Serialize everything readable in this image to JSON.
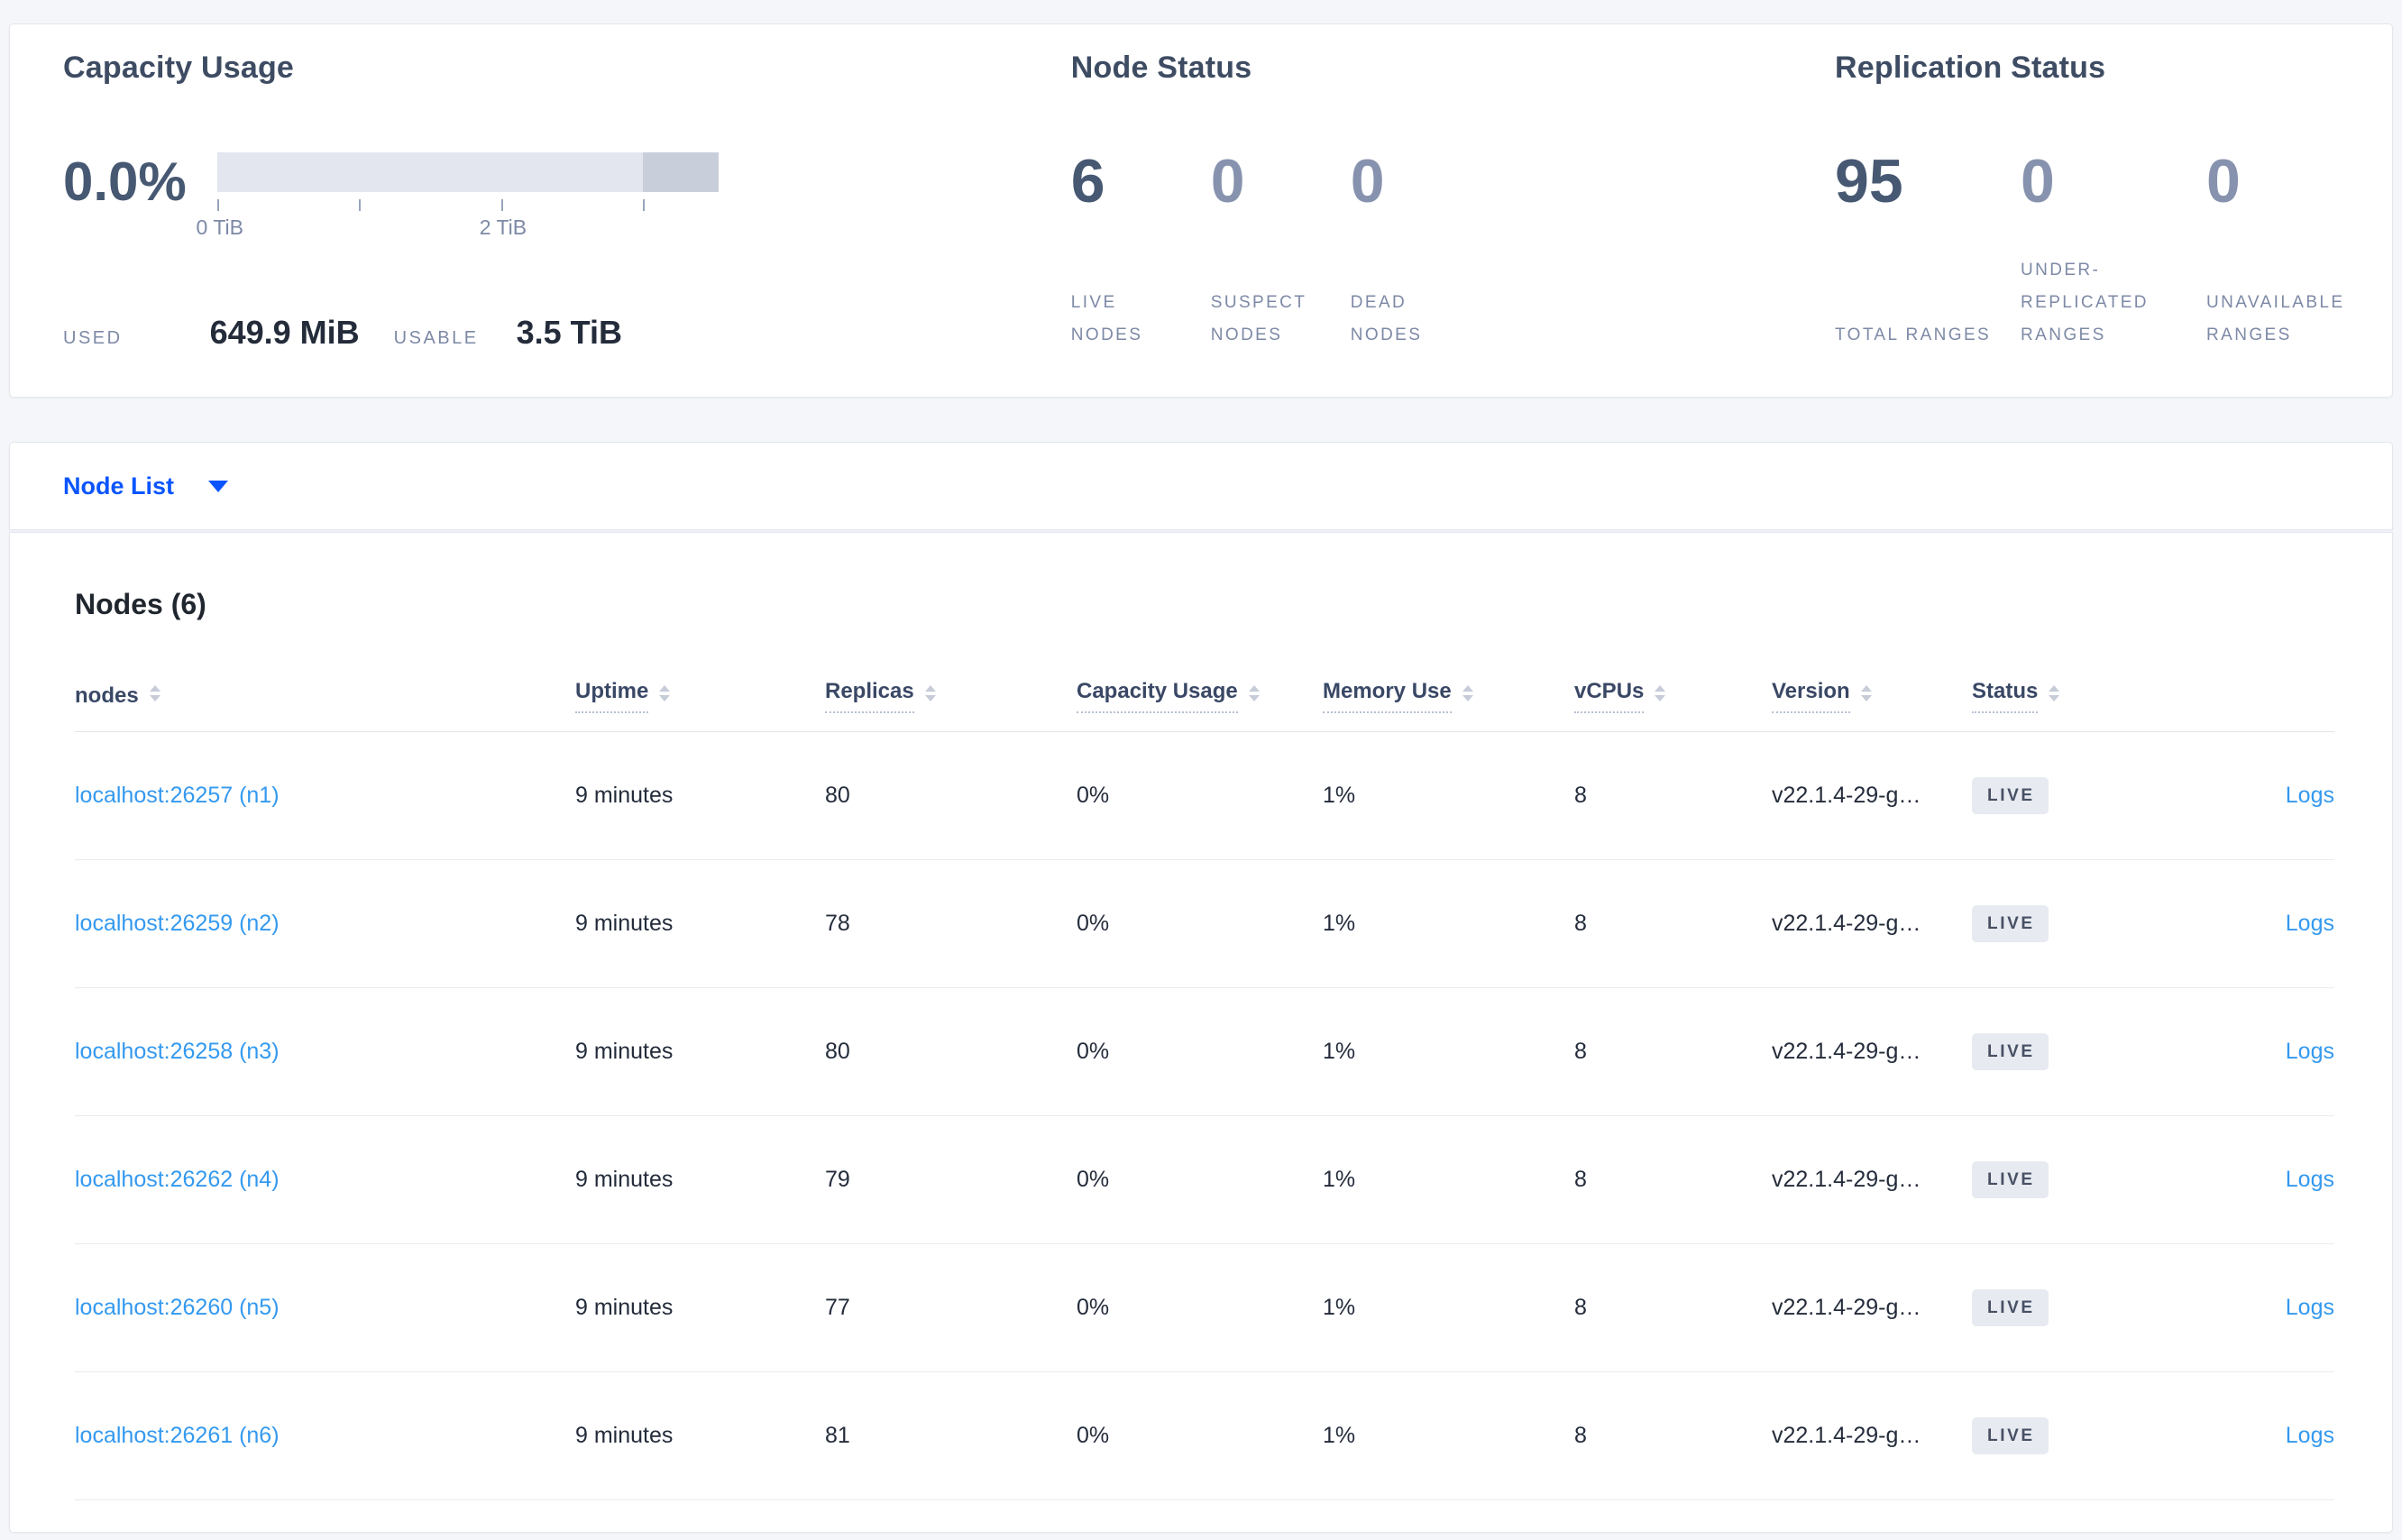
{
  "overview": {
    "capacity_usage": {
      "title": "Capacity Usage",
      "percent": "0.0%",
      "gauge_ticks": [
        "0 TiB",
        "2 TiB"
      ],
      "used_label": "USED",
      "used_value": "649.9 MiB",
      "usable_label": "USABLE",
      "usable_value": "3.5 TiB"
    },
    "node_status": {
      "title": "Node Status",
      "stats": [
        {
          "value": "6",
          "label": "LIVE NODES"
        },
        {
          "value": "0",
          "label": "SUSPECT NODES"
        },
        {
          "value": "0",
          "label": "DEAD NODES"
        }
      ]
    },
    "replication_status": {
      "title": "Replication Status",
      "stats": [
        {
          "value": "95",
          "label": "TOTAL RANGES"
        },
        {
          "value": "0",
          "label": "UNDER-REPLICATED RANGES"
        },
        {
          "value": "0",
          "label": "UNAVAILABLE RANGES"
        }
      ]
    }
  },
  "view_selector": {
    "label": "Node List",
    "caret_icon": "caret-down"
  },
  "nodes_table": {
    "title": "Nodes (6)",
    "columns": [
      "nodes",
      "Uptime",
      "Replicas",
      "Capacity Usage",
      "Memory Use",
      "vCPUs",
      "Version",
      "Status"
    ],
    "rows": [
      {
        "host": "localhost:26257 (n1)",
        "uptime": "9 minutes",
        "replicas": "80",
        "capacity": "0%",
        "memory": "1%",
        "vcpus": "8",
        "version": "v22.1.4-29-g…",
        "status": "LIVE",
        "logs": "Logs"
      },
      {
        "host": "localhost:26259 (n2)",
        "uptime": "9 minutes",
        "replicas": "78",
        "capacity": "0%",
        "memory": "1%",
        "vcpus": "8",
        "version": "v22.1.4-29-g…",
        "status": "LIVE",
        "logs": "Logs"
      },
      {
        "host": "localhost:26258 (n3)",
        "uptime": "9 minutes",
        "replicas": "80",
        "capacity": "0%",
        "memory": "1%",
        "vcpus": "8",
        "version": "v22.1.4-29-g…",
        "status": "LIVE",
        "logs": "Logs"
      },
      {
        "host": "localhost:26262 (n4)",
        "uptime": "9 minutes",
        "replicas": "79",
        "capacity": "0%",
        "memory": "1%",
        "vcpus": "8",
        "version": "v22.1.4-29-g…",
        "status": "LIVE",
        "logs": "Logs"
      },
      {
        "host": "localhost:26260 (n5)",
        "uptime": "9 minutes",
        "replicas": "77",
        "capacity": "0%",
        "memory": "1%",
        "vcpus": "8",
        "version": "v22.1.4-29-g…",
        "status": "LIVE",
        "logs": "Logs"
      },
      {
        "host": "localhost:26261 (n6)",
        "uptime": "9 minutes",
        "replicas": "81",
        "capacity": "0%",
        "memory": "1%",
        "vcpus": "8",
        "version": "v22.1.4-29-g…",
        "status": "LIVE",
        "logs": "Logs"
      }
    ]
  },
  "colors": {
    "accent_blue": "#0b55ff",
    "link_blue": "#3499ef",
    "title_slate": "#3e4c63",
    "stat_muted": "#8793ae",
    "badge_bg": "#e7eaf0",
    "gauge_track": "#e3e6ee",
    "gauge_tail": "#c9cedb"
  }
}
